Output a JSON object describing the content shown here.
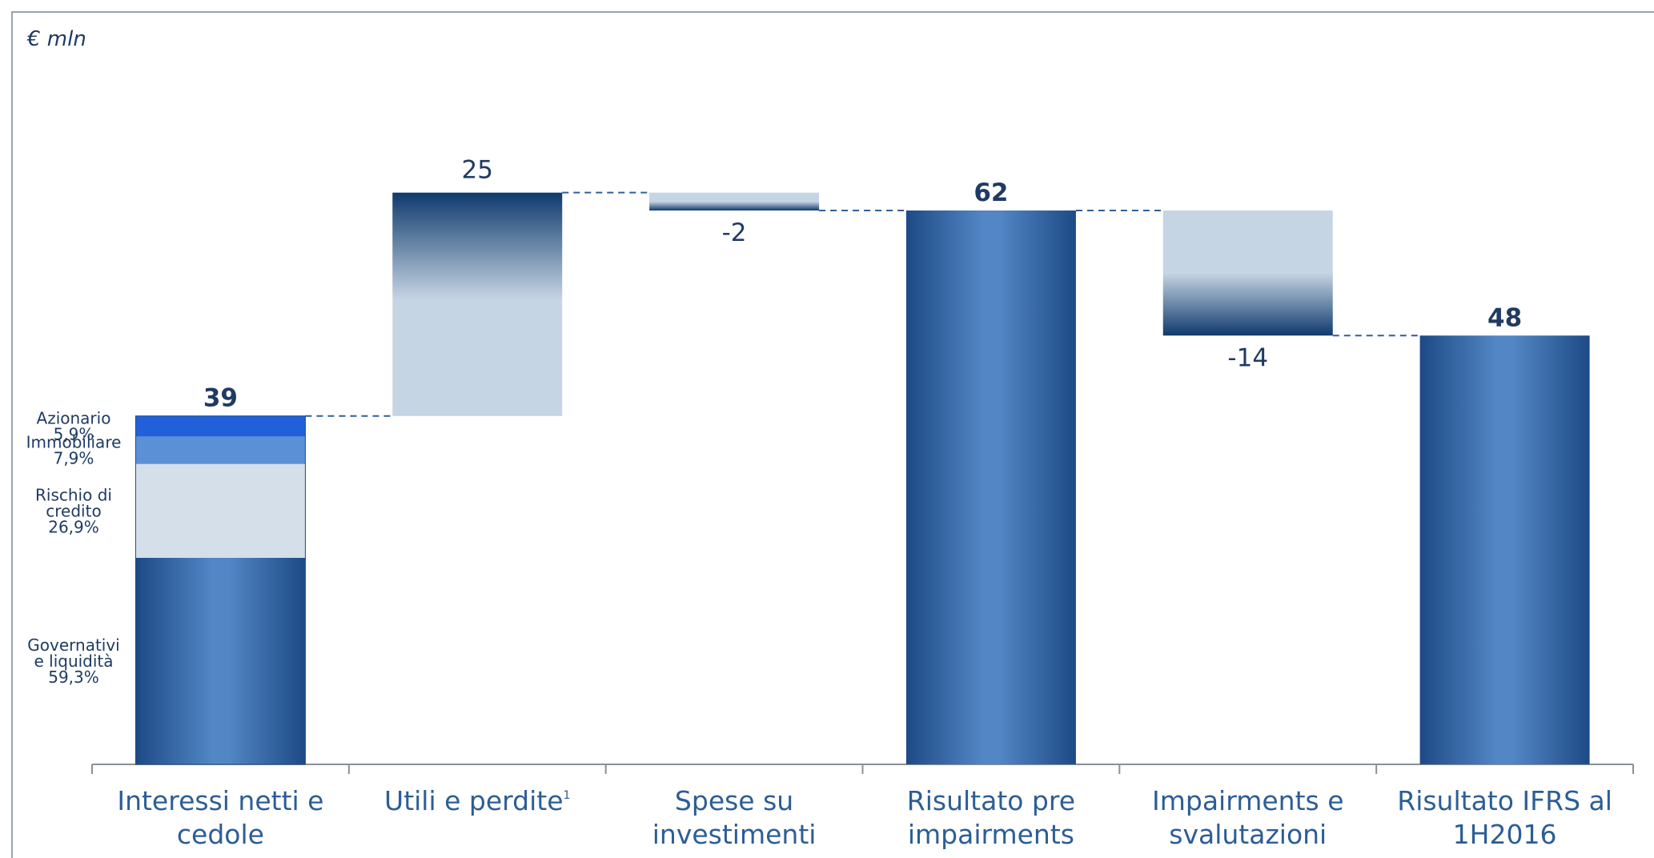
{
  "unit_label": "€ mln",
  "chart_data": {
    "type": "waterfall",
    "ylabel": "€ mln",
    "ylim": [
      0,
      80
    ],
    "categories": [
      "Interessi netti e cedole",
      "Utili e perdite",
      "Spese su investimenti",
      "Risultato pre impairments",
      "Impairments e svalutazioni",
      "Risultato IFRS al 1H2016"
    ],
    "category_lines": [
      [
        "Interessi netti e",
        "cedole"
      ],
      [
        "Utili e perdite"
      ],
      [
        "Spese su",
        "investimenti"
      ],
      [
        "Risultato pre",
        "impairments"
      ],
      [
        "Impairments e",
        "svalutazioni"
      ],
      [
        "Risultato IFRS al",
        "1H2016"
      ]
    ],
    "category_footnotes": [
      "",
      "1",
      "",
      "",
      "",
      ""
    ],
    "values": [
      39,
      25,
      -2,
      62,
      -14,
      48
    ],
    "value_labels": [
      "39",
      "25",
      "-2",
      "62",
      "-14",
      "48"
    ],
    "kinds": [
      "total",
      "delta",
      "delta",
      "total",
      "delta",
      "total"
    ],
    "breakdown": {
      "category": "Interessi netti e cedole",
      "segments": [
        {
          "lines": [
            "Governativi",
            "e liquidità"
          ],
          "pct_label": "59,3%",
          "share": 0.593,
          "color": "#2f5f99"
        },
        {
          "lines": [
            "Rischio di",
            "credito"
          ],
          "pct_label": "26,9%",
          "share": 0.269,
          "color": "#d4dfea"
        },
        {
          "lines": [
            "Immobiliare"
          ],
          "pct_label": "7,9%",
          "share": 0.079,
          "color": "#5b90d6"
        },
        {
          "lines": [
            "Azionario"
          ],
          "pct_label": "5,9%",
          "share": 0.059,
          "color": "#2160d8"
        }
      ]
    },
    "colors": {
      "total": "#2f5f99",
      "delta_light": "#c6d5e3",
      "delta_dark": "#0f3a6d",
      "label": "#1f3b63",
      "axis_label": "#2c5d96"
    }
  }
}
